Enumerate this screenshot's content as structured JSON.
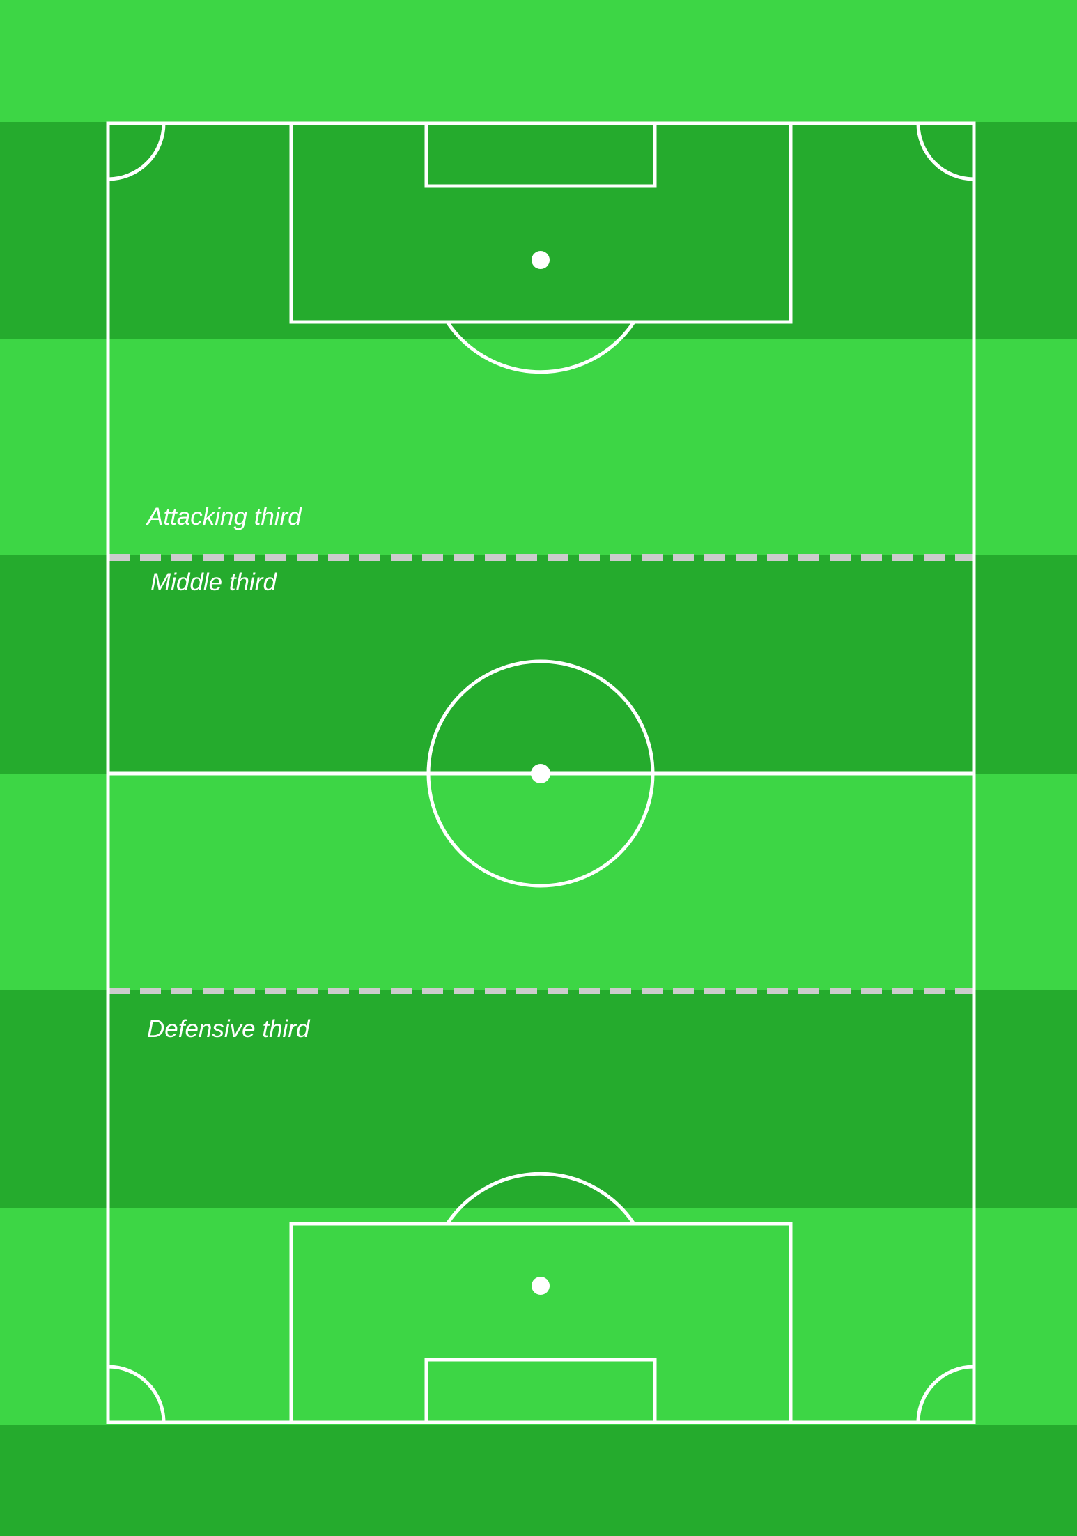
{
  "diagram": {
    "zones": {
      "attacking": "Attacking third",
      "middle": "Middle third",
      "defensive": "Defensive third"
    },
    "colors": {
      "stripe_light": "#3dd645",
      "stripe_dark": "#25ab2d",
      "line": "#ffffff",
      "divider": "#cccccc",
      "label": "#ffffff"
    }
  }
}
